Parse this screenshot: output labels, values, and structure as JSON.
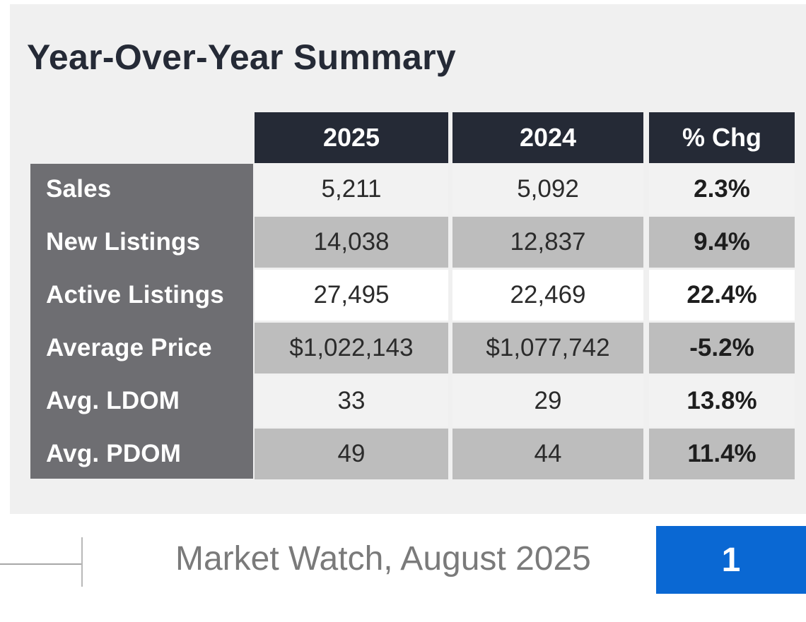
{
  "title": "Year-Over-Year Summary",
  "table": {
    "headers": [
      "2025",
      "2024",
      "% Chg"
    ],
    "rows": [
      {
        "label": "Sales",
        "y2025": "5,211",
        "y2024": "5,092",
        "chg": "2.3%"
      },
      {
        "label": "New Listings",
        "y2025": "14,038",
        "y2024": "12,837",
        "chg": "9.4%"
      },
      {
        "label": "Active Listings",
        "y2025": "27,495",
        "y2024": "22,469",
        "chg": "22.4%"
      },
      {
        "label": "Average Price",
        "y2025": "$1,022,143",
        "y2024": "$1,077,742",
        "chg": "-5.2%"
      },
      {
        "label": "Avg. LDOM",
        "y2025": "33",
        "y2024": "29",
        "chg": "13.8%"
      },
      {
        "label": "Avg. PDOM",
        "y2025": "49",
        "y2024": "44",
        "chg": "11.4%"
      }
    ]
  },
  "footer": {
    "text": "Market Watch, August 2025",
    "page_number": "1"
  },
  "colors": {
    "header_bg": "#252a36",
    "row_label_bg": "#6e6e72",
    "row_light": "#f2f2f2",
    "row_dark": "#bdbdbd",
    "page_badge": "#0a68d3"
  }
}
